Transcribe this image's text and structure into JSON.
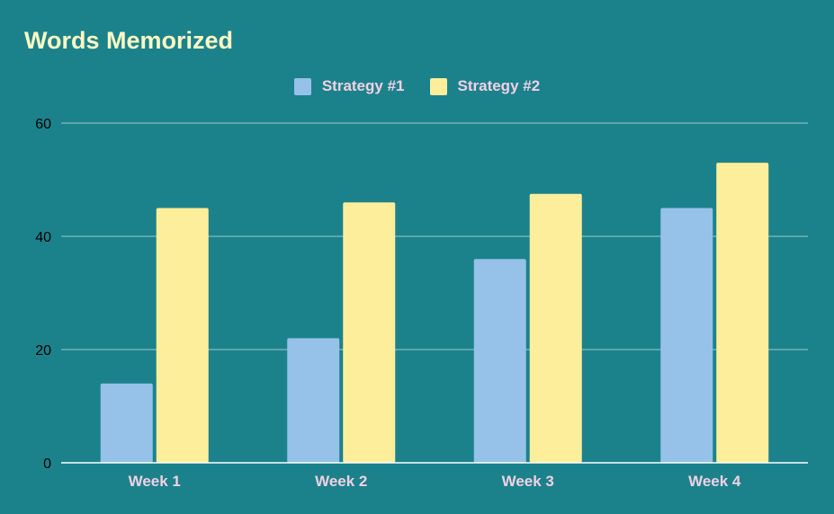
{
  "chart_data": {
    "type": "bar",
    "title": "Words Memorized",
    "categories": [
      "Week 1",
      "Week 2",
      "Week 3",
      "Week 4"
    ],
    "series": [
      {
        "name": "Strategy #1",
        "values": [
          14,
          22,
          36,
          45
        ],
        "color": "#96c1e8"
      },
      {
        "name": "Strategy #2",
        "values": [
          45,
          46,
          47.5,
          53
        ],
        "color": "#fdee9b"
      }
    ],
    "ylim": [
      0,
      60
    ],
    "yticks": [
      "0",
      "20",
      "40",
      "60"
    ],
    "grid": true,
    "legend_position": "top-center",
    "colors": {
      "background": "#1b828b",
      "title": "#fff9c4",
      "category_label": "#f3d0e4",
      "legend_label": "#f3d0e4",
      "tick_label": "#000000",
      "grid": "#9ec8cb",
      "axis": "#ffffff"
    }
  }
}
